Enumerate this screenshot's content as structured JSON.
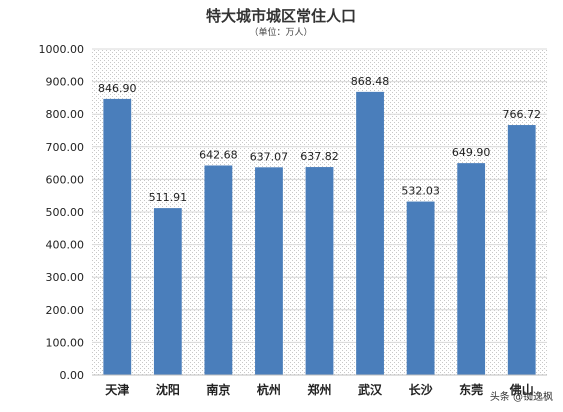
{
  "chart_data": {
    "type": "bar",
    "title": "特大城市城区常住人口",
    "subtitle": "（单位：万人）",
    "categories": [
      "天津",
      "沈阳",
      "南京",
      "杭州",
      "郑州",
      "武汉",
      "长沙",
      "东莞",
      "佛山"
    ],
    "values": [
      846.9,
      511.91,
      642.68,
      637.07,
      637.82,
      868.48,
      532.03,
      649.9,
      766.72
    ],
    "value_labels": [
      "846.90",
      "511.91",
      "642.68",
      "637.07",
      "637.82",
      "868.48",
      "532.03",
      "649.90",
      "766.72"
    ],
    "ylim": [
      0,
      1000
    ],
    "yticks": [
      0,
      100,
      200,
      300,
      400,
      500,
      600,
      700,
      800,
      900,
      1000
    ],
    "ytick_labels": [
      "0.00",
      "100.00",
      "200.00",
      "300.00",
      "400.00",
      "500.00",
      "600.00",
      "700.00",
      "800.00",
      "900.00",
      "1000.00"
    ],
    "grid": true,
    "bar_color": "#4a7ebb",
    "xlabel": "",
    "ylabel": ""
  },
  "watermark": {
    "text": "头条 @铷逸枫"
  }
}
